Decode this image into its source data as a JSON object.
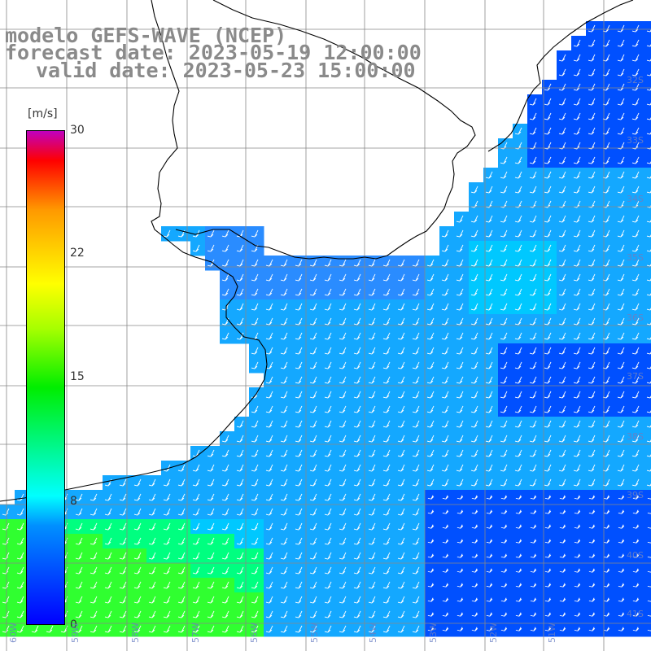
{
  "title": {
    "line1": "modelo GEFS-WAVE (NCEP)",
    "line2": "forecast date: 2023-05-19 12:00:00",
    "line3": "valid date: 2023-05-23 15:00:00"
  },
  "colorbar": {
    "unit": "[m/s]",
    "ticks": [
      "30",
      "22",
      "15",
      "8",
      "0"
    ],
    "tick_values": [
      30,
      22,
      15,
      8,
      0
    ],
    "range": [
      0,
      30
    ],
    "colors": [
      "#0000ff",
      "#0090ff",
      "#00ffff",
      "#00ee00",
      "#a8ff00",
      "#ffff00",
      "#ff9900",
      "#ff0000",
      "#c000c0"
    ]
  },
  "map": {
    "land_color": "#ffffff",
    "coastline_color": "#000000",
    "grid_color": "#888888",
    "field_colors": {
      "weak": "#0050ff",
      "medium": "#00c8ff",
      "strong": "#00ff80",
      "strongest": "#30ff30"
    },
    "arrow_color": "#ffffff",
    "lat_labels": [
      "32S",
      "33S",
      "34S",
      "35S",
      "36S",
      "37S",
      "38S",
      "39S",
      "40S",
      "41S"
    ],
    "lon_labels": [
      "60W",
      "59W",
      "58W",
      "57W",
      "56W",
      "55W",
      "54W",
      "53W",
      "52W",
      "51W"
    ]
  }
}
